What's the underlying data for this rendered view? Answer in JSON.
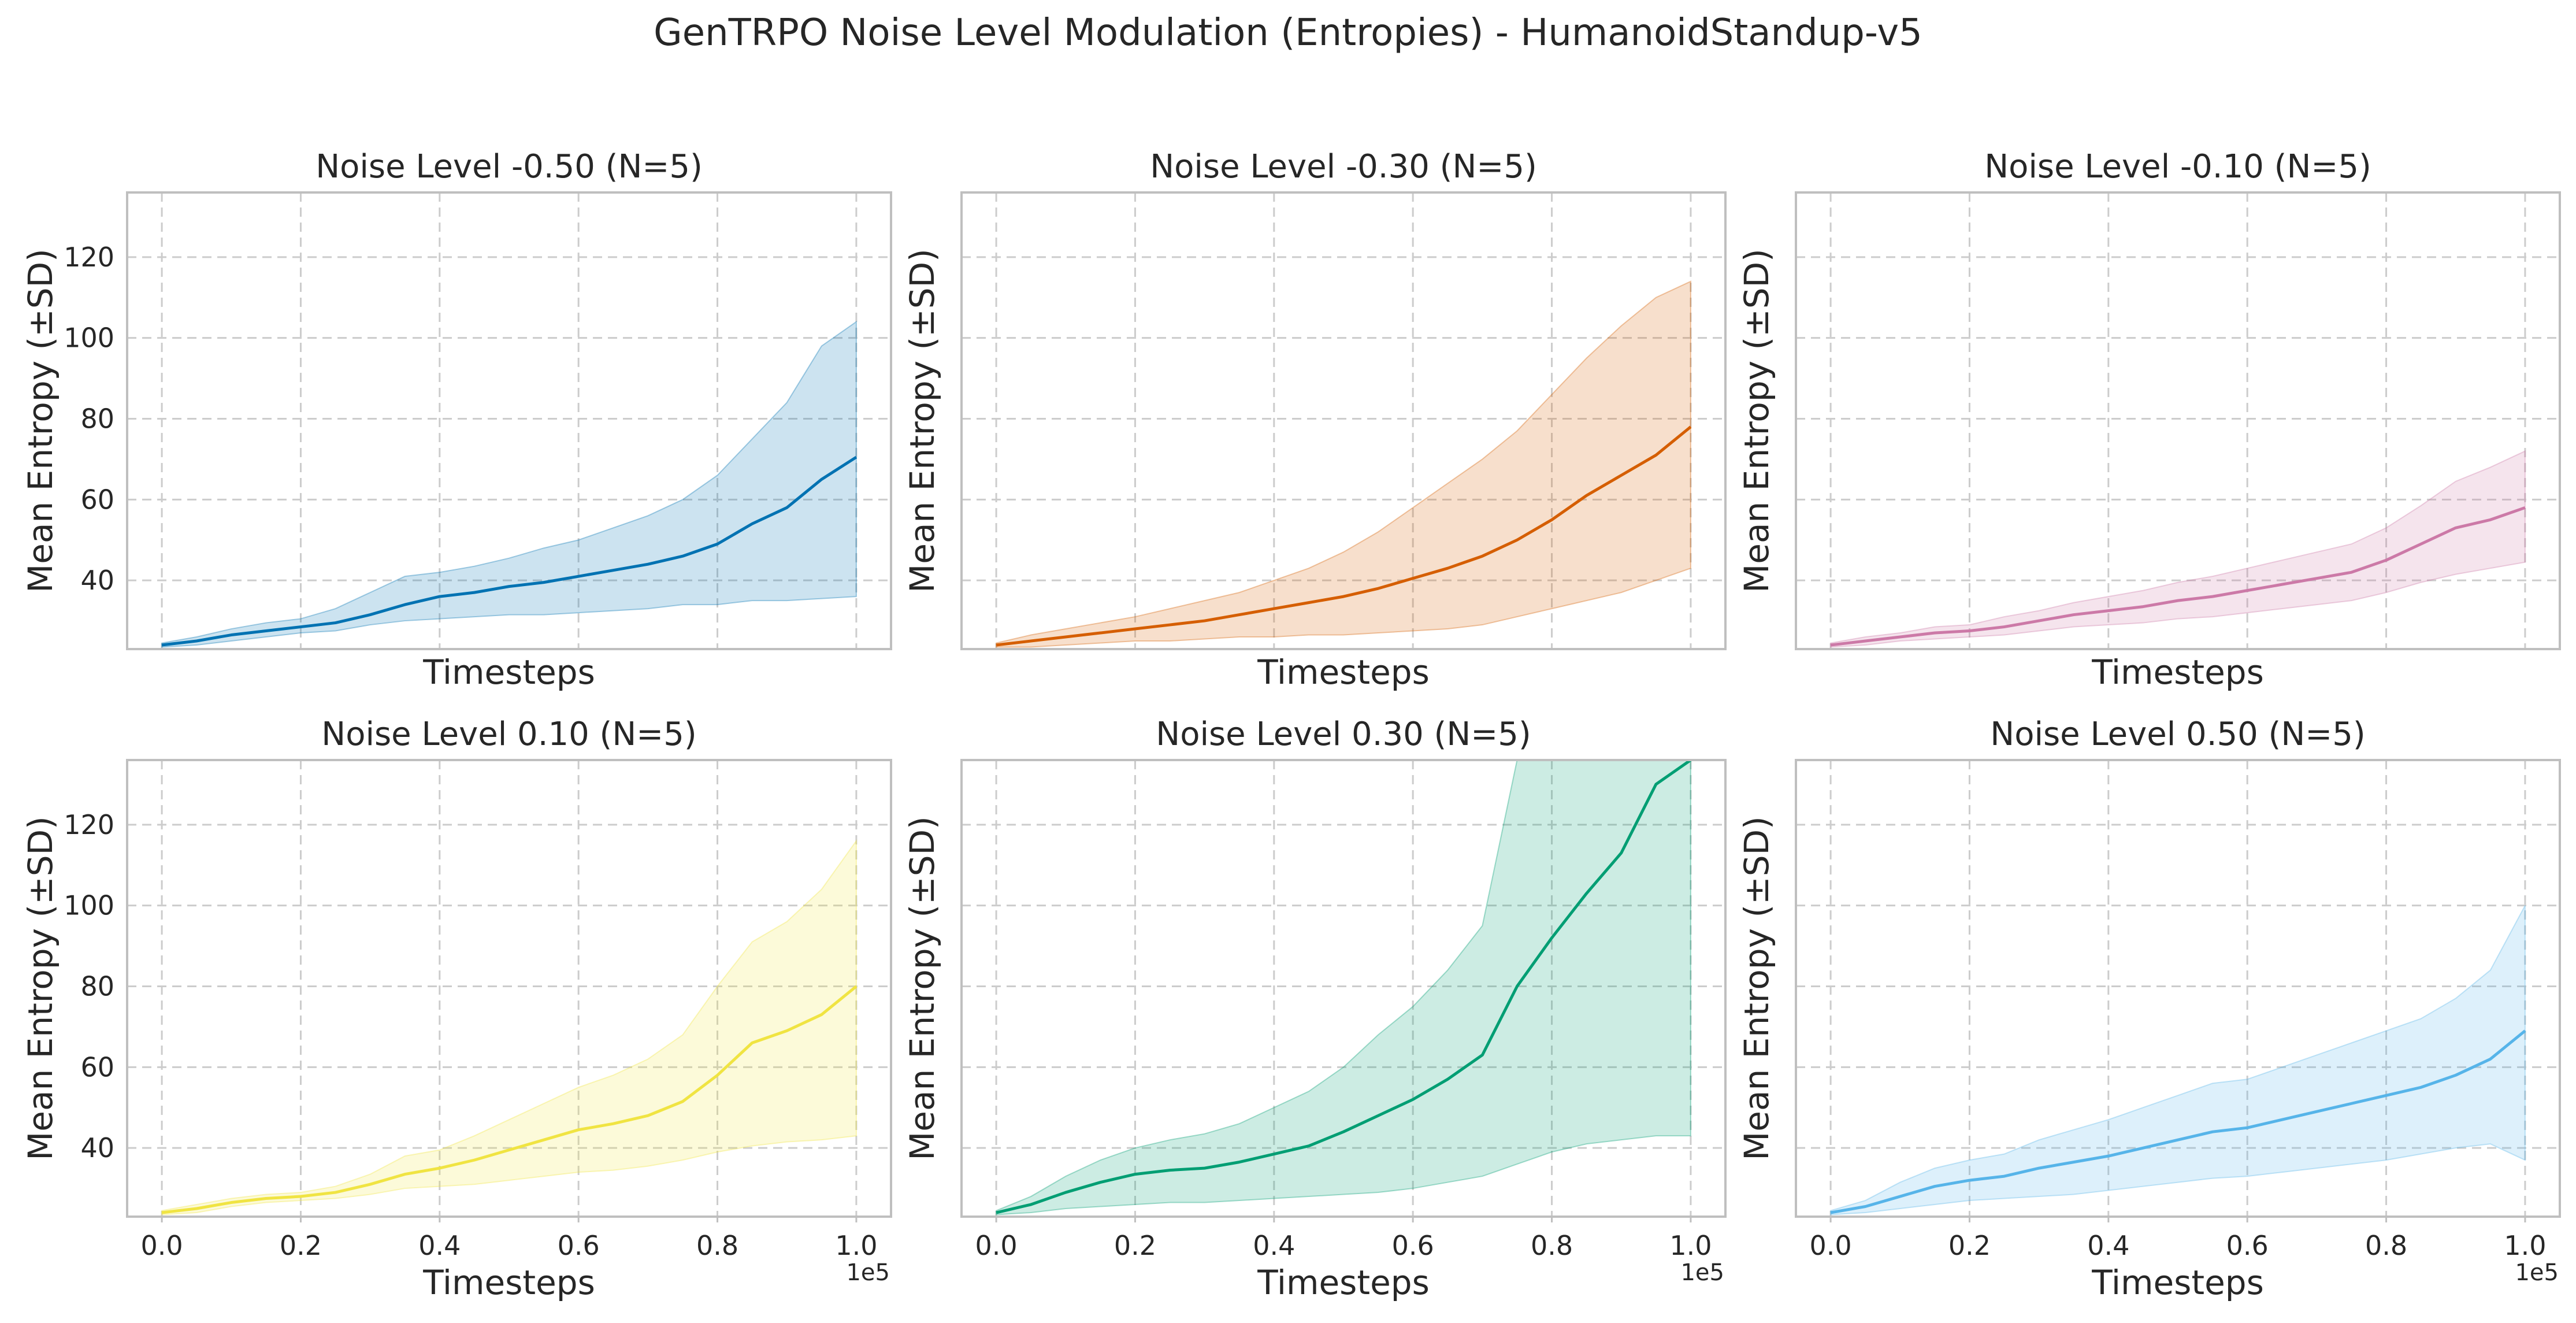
{
  "figure": {
    "title": "GenTRPO Noise Level Modulation (Entropies) - HumanoidStandup-v5"
  },
  "chart_data": [
    {
      "type": "line",
      "title": "Noise Level -0.50 (N=5)",
      "xlabel": "Timesteps",
      "ylabel": "Mean Entropy (±SD)",
      "color": "#0072B2",
      "x": [
        0,
        5000,
        10000,
        15000,
        20000,
        25000,
        30000,
        35000,
        40000,
        45000,
        50000,
        55000,
        60000,
        65000,
        70000,
        75000,
        80000,
        85000,
        90000,
        95000,
        100000
      ],
      "series": [
        {
          "mean": [
            24,
            25,
            26.5,
            27.5,
            28.5,
            29.5,
            31.5,
            34,
            36,
            37,
            38.5,
            39.5,
            41,
            42.5,
            44,
            46,
            49,
            54,
            58,
            65,
            70.5
          ],
          "lower": [
            23.5,
            24,
            25,
            26,
            27,
            27.5,
            29,
            30,
            30.5,
            31,
            31.5,
            31.5,
            32,
            32.5,
            33,
            34,
            34,
            35,
            35,
            35.5,
            36
          ],
          "upper": [
            24.5,
            26,
            28,
            29.5,
            30.5,
            33,
            37,
            41,
            42,
            43.5,
            45.5,
            48,
            50,
            53,
            56,
            60,
            66,
            75,
            84,
            98,
            104
          ]
        }
      ],
      "xlim": [
        -5000,
        105000
      ],
      "ylim": [
        23,
        136
      ],
      "xticks": [
        "0.0",
        "0.2",
        "0.4",
        "0.6",
        "0.8",
        "1.0"
      ],
      "yticks": [
        "40",
        "60",
        "80",
        "100",
        "120"
      ],
      "x_offset_label": "1e5",
      "grid": true
    },
    {
      "type": "line",
      "title": "Noise Level -0.30 (N=5)",
      "xlabel": "Timesteps",
      "ylabel": "Mean Entropy (±SD)",
      "color": "#D55E00",
      "x": [
        0,
        5000,
        10000,
        15000,
        20000,
        25000,
        30000,
        35000,
        40000,
        45000,
        50000,
        55000,
        60000,
        65000,
        70000,
        75000,
        80000,
        85000,
        90000,
        95000,
        100000
      ],
      "series": [
        {
          "mean": [
            24,
            25,
            26,
            27,
            28,
            29,
            30,
            31.5,
            33,
            34.5,
            36,
            38,
            40.5,
            43,
            46,
            50,
            55,
            61,
            66,
            71,
            78
          ],
          "lower": [
            23.5,
            23.5,
            24,
            24.5,
            25,
            25,
            25.5,
            26,
            26,
            26.5,
            26.5,
            27,
            27.5,
            28,
            29,
            31,
            33,
            35,
            37,
            40,
            43
          ],
          "upper": [
            24.5,
            26.5,
            28,
            29.5,
            31,
            33,
            35,
            37,
            40,
            43,
            47,
            52,
            58,
            64,
            70,
            77,
            86,
            95,
            103,
            110,
            114
          ]
        }
      ],
      "xlim": [
        -5000,
        105000
      ],
      "ylim": [
        23,
        136
      ],
      "xticks": [
        "0.0",
        "0.2",
        "0.4",
        "0.6",
        "0.8",
        "1.0"
      ],
      "yticks": [
        "40",
        "60",
        "80",
        "100",
        "120"
      ],
      "x_offset_label": "1e5",
      "grid": true
    },
    {
      "type": "line",
      "title": "Noise Level -0.10 (N=5)",
      "xlabel": "Timesteps",
      "ylabel": "Mean Entropy (±SD)",
      "color": "#CC79A7",
      "x": [
        0,
        5000,
        10000,
        15000,
        20000,
        25000,
        30000,
        35000,
        40000,
        45000,
        50000,
        55000,
        60000,
        65000,
        70000,
        75000,
        80000,
        85000,
        90000,
        95000,
        100000
      ],
      "series": [
        {
          "mean": [
            24,
            25,
            26,
            27,
            27.5,
            28.5,
            30,
            31.5,
            32.5,
            33.5,
            35,
            36,
            37.5,
            39,
            40.5,
            42,
            45,
            49,
            53,
            55,
            58
          ],
          "lower": [
            23.5,
            24,
            25,
            25.5,
            26,
            26.5,
            27.5,
            28.5,
            29,
            29.5,
            30.5,
            31,
            32,
            33,
            34,
            35,
            37,
            39.5,
            41.5,
            43,
            44.5
          ],
          "upper": [
            24.5,
            26,
            27,
            28.5,
            29,
            31,
            32.5,
            34.5,
            36,
            37.5,
            39.5,
            41,
            43,
            45,
            47,
            49,
            53,
            58.5,
            64.5,
            68,
            72
          ]
        }
      ],
      "xlim": [
        -5000,
        105000
      ],
      "ylim": [
        23,
        136
      ],
      "xticks": [
        "0.0",
        "0.2",
        "0.4",
        "0.6",
        "0.8",
        "1.0"
      ],
      "yticks": [
        "40",
        "60",
        "80",
        "100",
        "120"
      ],
      "x_offset_label": "1e5",
      "grid": true
    },
    {
      "type": "line",
      "title": "Noise Level 0.10 (N=5)",
      "xlabel": "Timesteps",
      "ylabel": "Mean Entropy (±SD)",
      "color": "#F0E442",
      "x": [
        0,
        5000,
        10000,
        15000,
        20000,
        25000,
        30000,
        35000,
        40000,
        45000,
        50000,
        55000,
        60000,
        65000,
        70000,
        75000,
        80000,
        85000,
        90000,
        95000,
        100000
      ],
      "series": [
        {
          "mean": [
            24,
            25,
            26.5,
            27.5,
            28,
            29,
            31,
            33.5,
            35,
            37,
            39.5,
            42,
            44.5,
            46,
            48,
            51.5,
            58,
            66,
            69,
            73,
            80
          ],
          "lower": [
            23.5,
            24,
            25.5,
            26.5,
            27,
            27.5,
            28.5,
            30,
            30.5,
            31,
            32,
            33,
            34,
            34.5,
            35.5,
            37,
            39,
            40.5,
            41.5,
            42,
            43
          ],
          "upper": [
            24.5,
            26,
            27.5,
            28.5,
            29,
            30.5,
            33.5,
            38,
            39.5,
            43,
            47,
            51,
            55,
            58,
            62,
            68,
            80,
            91,
            96,
            104,
            116
          ]
        }
      ],
      "xlim": [
        -5000,
        105000
      ],
      "ylim": [
        23,
        136
      ],
      "xticks": [
        "0.0",
        "0.2",
        "0.4",
        "0.6",
        "0.8",
        "1.0"
      ],
      "yticks": [
        "40",
        "60",
        "80",
        "100",
        "120"
      ],
      "x_offset_label": "1e5",
      "grid": true
    },
    {
      "type": "line",
      "title": "Noise Level 0.30 (N=5)",
      "xlabel": "Timesteps",
      "ylabel": "Mean Entropy (±SD)",
      "color": "#009E73",
      "x": [
        0,
        5000,
        10000,
        15000,
        20000,
        25000,
        30000,
        35000,
        40000,
        45000,
        50000,
        55000,
        60000,
        65000,
        70000,
        75000,
        80000,
        85000,
        90000,
        95000,
        100000
      ],
      "series": [
        {
          "mean": [
            24,
            26,
            29,
            31.5,
            33.5,
            34.5,
            35,
            36.5,
            38.5,
            40.5,
            44,
            48,
            52,
            57,
            63,
            80,
            92,
            103,
            113,
            130,
            136
          ],
          "lower": [
            23.5,
            24,
            25,
            25.5,
            26,
            26.5,
            26.5,
            27,
            27.5,
            28,
            28.5,
            29,
            30,
            31.5,
            33,
            36,
            39,
            41,
            42,
            43,
            43
          ],
          "upper": [
            24.5,
            28,
            33,
            37,
            40,
            42,
            43.5,
            46,
            50,
            54,
            60,
            68,
            75,
            84,
            95,
            138,
            138,
            138,
            138,
            138,
            138
          ]
        }
      ],
      "xlim": [
        -5000,
        105000
      ],
      "ylim": [
        23,
        136
      ],
      "xticks": [
        "0.0",
        "0.2",
        "0.4",
        "0.6",
        "0.8",
        "1.0"
      ],
      "yticks": [
        "40",
        "60",
        "80",
        "100",
        "120"
      ],
      "x_offset_label": "1e5",
      "grid": true
    },
    {
      "type": "line",
      "title": "Noise Level 0.50 (N=5)",
      "xlabel": "Timesteps",
      "ylabel": "Mean Entropy (±SD)",
      "color": "#56B4E9",
      "x": [
        0,
        5000,
        10000,
        15000,
        20000,
        25000,
        30000,
        35000,
        40000,
        45000,
        50000,
        55000,
        60000,
        65000,
        70000,
        75000,
        80000,
        85000,
        90000,
        95000,
        100000
      ],
      "series": [
        {
          "mean": [
            24,
            25.5,
            28,
            30.5,
            32,
            33,
            35,
            36.5,
            38,
            40,
            42,
            44,
            45,
            47,
            49,
            51,
            53,
            55,
            58,
            62,
            69
          ],
          "lower": [
            23.5,
            24,
            25,
            26,
            27,
            27.5,
            28,
            28.5,
            29.5,
            30.5,
            31.5,
            32.5,
            33,
            34,
            35,
            36,
            37,
            38.5,
            40,
            41,
            37
          ],
          "upper": [
            24.5,
            27,
            31.5,
            35,
            37,
            38.5,
            42,
            44.5,
            47,
            50,
            53,
            56,
            57,
            60,
            63,
            66,
            69,
            72,
            77,
            84,
            100
          ]
        }
      ],
      "xlim": [
        -5000,
        105000
      ],
      "ylim": [
        23,
        136
      ],
      "xticks": [
        "0.0",
        "0.2",
        "0.4",
        "0.6",
        "0.8",
        "1.0"
      ],
      "yticks": [
        "40",
        "60",
        "80",
        "100",
        "120"
      ],
      "x_offset_label": "1e5",
      "grid": true
    }
  ]
}
